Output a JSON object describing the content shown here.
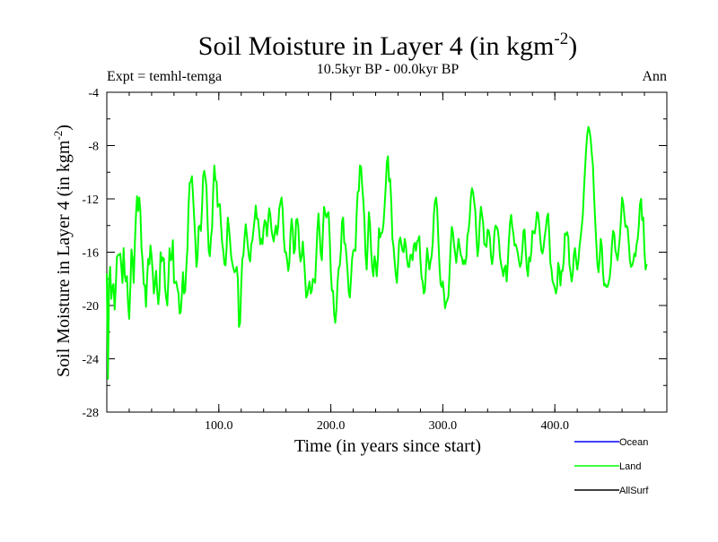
{
  "chart_data": {
    "type": "line",
    "title": "Soil Moisture in Layer 4 (in kgm",
    "title_sup": "-2",
    "title_close": ")",
    "subtitle": "10.5kyr BP - 00.0kyr BP",
    "expt_label": "Expt = temhl-temga",
    "season": "Ann",
    "xlabel": "Time (in years since start)",
    "ylabel": "Soil Moisture in Layer 4 (in kgm",
    "ylabel_sup": "-2",
    "ylabel_close": ")",
    "xlim": [
      0,
      500
    ],
    "ylim": [
      -28,
      -4
    ],
    "x_ticks": [
      100,
      200,
      300,
      400
    ],
    "x_tick_labels": [
      "100.0",
      "200.0",
      "300.0",
      "400.0"
    ],
    "y_ticks": [
      -28,
      -24,
      -20,
      -16,
      -12,
      -8,
      -4
    ],
    "y_tick_labels": [
      "-28",
      "-24",
      "-20",
      "-16",
      "-12",
      "-8",
      "-4"
    ],
    "x_minor_step": 20,
    "y_minor_step": 2,
    "series": [
      {
        "name": "Land",
        "color": "#00ff00",
        "x_start": 0,
        "x_step": 1,
        "values": [
          -17.6,
          -25.5,
          -18.2,
          -17.1,
          -19.5,
          -18.6,
          -18.4,
          -20.3,
          -18.6,
          -16.4,
          -16.2,
          -16.2,
          -16.1,
          -17.1,
          -18.3,
          -15.7,
          -17.7,
          -18.2,
          -17.8,
          -19.9,
          -21.0,
          -18.7,
          -15.8,
          -16.5,
          -18.3,
          -15.5,
          -13.3,
          -11.8,
          -12.9,
          -11.9,
          -13.0,
          -15.7,
          -16.7,
          -18.4,
          -18.5,
          -20.1,
          -17.9,
          -16.5,
          -16.9,
          -15.5,
          -16.3,
          -17.5,
          -19.1,
          -18.4,
          -17.4,
          -18.9,
          -19.9,
          -18.9,
          -16.0,
          -16.7,
          -16.4,
          -16.5,
          -18.7,
          -19.4,
          -20.0,
          -18.0,
          -15.7,
          -16.6,
          -16.5,
          -15.1,
          -18.3,
          -18.3,
          -18.2,
          -18.7,
          -19.1,
          -20.6,
          -20.5,
          -19.2,
          -17.5,
          -19.1,
          -18.9,
          -17.1,
          -15.7,
          -12.5,
          -10.8,
          -10.7,
          -10.3,
          -11.8,
          -13.4,
          -15.0,
          -17.1,
          -16.4,
          -14.1,
          -14.0,
          -14.4,
          -12.7,
          -10.3,
          -9.9,
          -10.4,
          -11.1,
          -13.8,
          -15.9,
          -16.3,
          -14.9,
          -14.2,
          -11.3,
          -9.5,
          -10.6,
          -10.7,
          -12.6,
          -12.4,
          -12.4,
          -14.0,
          -15.3,
          -15.9,
          -16.9,
          -17.0,
          -15.6,
          -13.4,
          -14.1,
          -15.1,
          -16.3,
          -16.8,
          -17.2,
          -17.5,
          -17.4,
          -17.1,
          -18.0,
          -21.6,
          -21.3,
          -18.5,
          -16.5,
          -16.2,
          -14.9,
          -13.9,
          -14.7,
          -15.6,
          -16.4,
          -16.7,
          -15.4,
          -15.1,
          -14.3,
          -13.5,
          -12.5,
          -13.5,
          -13.5,
          -14.4,
          -15.4,
          -15.0,
          -15.4,
          -14.2,
          -13.6,
          -13.8,
          -14.8,
          -13.7,
          -12.7,
          -13.2,
          -14.3,
          -14.8,
          -15.2,
          -14.5,
          -14.0,
          -14.7,
          -14.1,
          -12.7,
          -12.3,
          -11.9,
          -12.8,
          -14.9,
          -16.0,
          -16.0,
          -16.6,
          -17.4,
          -16.8,
          -14.6,
          -13.5,
          -14.3,
          -16.1,
          -15.8,
          -13.6,
          -13.5,
          -14.1,
          -16.0,
          -16.7,
          -16.3,
          -15.2,
          -16.4,
          -17.8,
          -19.4,
          -19.2,
          -18.6,
          -18.2,
          -19.1,
          -18.9,
          -18.0,
          -18.1,
          -18.3,
          -16.3,
          -14.3,
          -13.1,
          -14.6,
          -16.1,
          -16.6,
          -14.3,
          -12.6,
          -13.1,
          -13.4,
          -13.1,
          -13.0,
          -14.9,
          -17.5,
          -18.9,
          -18.9,
          -20.7,
          -21.3,
          -20.3,
          -18.3,
          -17.2,
          -17.0,
          -15.9,
          -13.7,
          -13.4,
          -15.3,
          -15.4,
          -16.3,
          -17.5,
          -19.0,
          -19.4,
          -18.0,
          -16.5,
          -15.9,
          -15.8,
          -15.9,
          -13.2,
          -11.5,
          -11.4,
          -9.5,
          -9.6,
          -11.0,
          -12.1,
          -13.6,
          -16.2,
          -17.3,
          -15.3,
          -13.0,
          -13.9,
          -15.9,
          -17.2,
          -17.8,
          -16.3,
          -16.8,
          -17.8,
          -16.5,
          -14.2,
          -14.9,
          -14.6,
          -14.5,
          -13.9,
          -12.6,
          -11.1,
          -9.3,
          -8.8,
          -10.7,
          -10.5,
          -12.3,
          -15.0,
          -15.6,
          -16.7,
          -17.7,
          -18.3,
          -16.9,
          -15.2,
          -14.9,
          -15.4,
          -15.9,
          -16.0,
          -15.0,
          -15.5,
          -16.5,
          -17.1,
          -17.1,
          -16.2,
          -16.2,
          -16.6,
          -15.5,
          -15.3,
          -15.9,
          -15.2,
          -15.1,
          -14.8,
          -16.6,
          -17.9,
          -18.2,
          -19.1,
          -18.9,
          -17.2,
          -15.7,
          -16.5,
          -17.3,
          -16.7,
          -16.3,
          -15.3,
          -13.2,
          -12.2,
          -11.9,
          -12.8,
          -15.0,
          -17.0,
          -18.4,
          -18.6,
          -18.2,
          -19.1,
          -20.2,
          -19.8,
          -19.6,
          -19.3,
          -17.6,
          -15.5,
          -14.1,
          -14.5,
          -15.4,
          -16.1,
          -16.8,
          -15.9,
          -15.0,
          -15.6,
          -16.2,
          -16.4,
          -16.9,
          -16.6,
          -16.9,
          -16.4,
          -14.7,
          -14.4,
          -13.4,
          -11.9,
          -11.2,
          -11.5,
          -12.2,
          -12.9,
          -14.8,
          -16.3,
          -15.6,
          -13.7,
          -12.6,
          -13.2,
          -13.8,
          -15.4,
          -15.5,
          -15.6,
          -14.3,
          -14.4,
          -14.9,
          -16.3,
          -16.9,
          -16.2,
          -14.6,
          -14.0,
          -14.1,
          -14.3,
          -15.0,
          -16.3,
          -16.9,
          -17.3,
          -17.8,
          -17.2,
          -17.0,
          -18.2,
          -16.8,
          -15.1,
          -13.8,
          -13.2,
          -14.1,
          -14.6,
          -15.5,
          -15.4,
          -15.7,
          -16.1,
          -16.7,
          -17.1,
          -16.8,
          -15.8,
          -14.4,
          -14.3,
          -15.9,
          -17.2,
          -17.8,
          -16.4,
          -16.7,
          -16.0,
          -14.4,
          -14.5,
          -14.6,
          -14.0,
          -13.0,
          -13.1,
          -13.9,
          -15.0,
          -15.9,
          -16.1,
          -15.6,
          -14.8,
          -14.2,
          -13.4,
          -13.1,
          -14.6,
          -16.8,
          -17.3,
          -18.2,
          -18.4,
          -18.7,
          -19.1,
          -18.6,
          -16.8,
          -17.2,
          -18.5,
          -17.4,
          -17.4,
          -16.6,
          -14.6,
          -14.7,
          -14.5,
          -14.9,
          -16.9,
          -17.5,
          -18.2,
          -17.6,
          -16.2,
          -15.7,
          -16.6,
          -17.3,
          -16.7,
          -15.6,
          -14.9,
          -14.1,
          -13.2,
          -11.3,
          -9.7,
          -8.2,
          -7.1,
          -6.6,
          -6.9,
          -7.5,
          -8.6,
          -9.5,
          -11.7,
          -13.6,
          -15.3,
          -16.9,
          -17.5,
          -16.5,
          -15.0,
          -15.6,
          -17.5,
          -18.5,
          -18.4,
          -18.6,
          -18.6,
          -18.3,
          -17.9,
          -17.0,
          -15.4,
          -14.4,
          -14.6,
          -15.8,
          -16.2,
          -16.6,
          -15.8,
          -14.9,
          -13.6,
          -11.9,
          -12.3,
          -13.2,
          -14.1,
          -14.0,
          -14.2,
          -15.3,
          -16.6,
          -17.1,
          -17.0,
          -16.7,
          -16.1,
          -16.3,
          -15.4,
          -15.0,
          -14.0,
          -12.4,
          -12.0,
          -13.6,
          -13.4,
          -15.9,
          -17.3,
          -16.9
        ]
      },
      {
        "name": "Ocean",
        "color": "#0000ff",
        "values": []
      },
      {
        "name": "AllSurf",
        "color": "#000000",
        "values": []
      }
    ],
    "legend": [
      {
        "label": "Ocean",
        "color": "#0000ff"
      },
      {
        "label": "Land",
        "color": "#00ff00"
      },
      {
        "label": "AllSurf",
        "color": "#000000"
      }
    ]
  }
}
